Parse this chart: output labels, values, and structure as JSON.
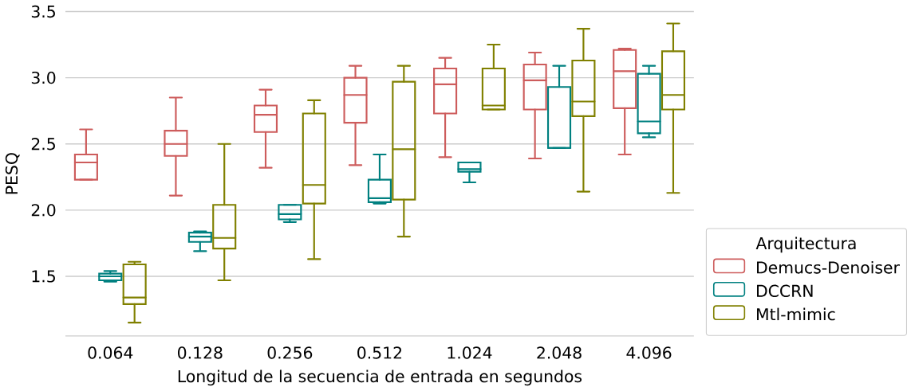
{
  "chart_data": {
    "type": "box",
    "xlabel": "Longitud de la secuencia de entrada en segundos",
    "ylabel": "PESQ",
    "legend_title": "Arquitectura",
    "legend": "bottom right",
    "grid": "y",
    "categories": [
      "0.064",
      "0.128",
      "0.256",
      "0.512",
      "1.024",
      "2.048",
      "4.096"
    ],
    "ylim": [
      1.05,
      3.5
    ],
    "yticks": [
      {
        "value": 1.5,
        "label": "1.5"
      },
      {
        "value": 2.0,
        "label": "2.0"
      },
      {
        "value": 2.5,
        "label": "2.5"
      },
      {
        "value": 3.0,
        "label": "3.0"
      },
      {
        "value": 3.5,
        "label": "3.5"
      }
    ],
    "series": [
      {
        "name": "Demucs-Denoiser",
        "color": "#cd5c5c",
        "boxes": [
          {
            "low": 2.23,
            "q1": 2.23,
            "median": 2.36,
            "q3": 2.42,
            "high": 2.61
          },
          {
            "low": 2.11,
            "q1": 2.41,
            "median": 2.5,
            "q3": 2.6,
            "high": 2.85
          },
          {
            "low": 2.32,
            "q1": 2.59,
            "median": 2.72,
            "q3": 2.79,
            "high": 2.91
          },
          {
            "low": 2.34,
            "q1": 2.66,
            "median": 2.87,
            "q3": 3.0,
            "high": 3.09
          },
          {
            "low": 2.4,
            "q1": 2.73,
            "median": 2.95,
            "q3": 3.07,
            "high": 3.15
          },
          {
            "low": 2.39,
            "q1": 2.76,
            "median": 2.98,
            "q3": 3.1,
            "high": 3.19
          },
          {
            "low": 2.42,
            "q1": 2.77,
            "median": 3.05,
            "q3": 3.21,
            "high": 3.22
          }
        ]
      },
      {
        "name": "DCCRN",
        "color": "#008080",
        "boxes": [
          {
            "low": 1.46,
            "q1": 1.47,
            "median": 1.5,
            "q3": 1.52,
            "high": 1.54
          },
          {
            "low": 1.69,
            "q1": 1.76,
            "median": 1.8,
            "q3": 1.83,
            "high": 1.84
          },
          {
            "low": 1.91,
            "q1": 1.93,
            "median": 1.97,
            "q3": 2.04,
            "high": 2.04
          },
          {
            "low": 2.05,
            "q1": 2.06,
            "median": 2.09,
            "q3": 2.23,
            "high": 2.42
          },
          {
            "low": 2.21,
            "q1": 2.29,
            "median": 2.31,
            "q3": 2.36,
            "high": 2.36
          },
          {
            "low": 2.47,
            "q1": 2.47,
            "median": 2.47,
            "q3": 2.93,
            "high": 3.09
          },
          {
            "low": 2.55,
            "q1": 2.58,
            "median": 2.67,
            "q3": 3.03,
            "high": 3.09
          }
        ]
      },
      {
        "name": "Mtl-mimic",
        "color": "#808000",
        "boxes": [
          {
            "low": 1.15,
            "q1": 1.29,
            "median": 1.34,
            "q3": 1.59,
            "high": 1.61
          },
          {
            "low": 1.47,
            "q1": 1.71,
            "median": 1.79,
            "q3": 2.04,
            "high": 2.5
          },
          {
            "low": 1.63,
            "q1": 2.05,
            "median": 2.19,
            "q3": 2.73,
            "high": 2.83
          },
          {
            "low": 1.8,
            "q1": 2.08,
            "median": 2.46,
            "q3": 2.97,
            "high": 3.09
          },
          {
            "low": 2.76,
            "q1": 2.76,
            "median": 2.79,
            "q3": 3.07,
            "high": 3.25
          },
          {
            "low": 2.14,
            "q1": 2.71,
            "median": 2.82,
            "q3": 3.13,
            "high": 3.37
          },
          {
            "low": 2.13,
            "q1": 2.76,
            "median": 2.87,
            "q3": 3.2,
            "high": 3.41
          }
        ]
      }
    ]
  }
}
